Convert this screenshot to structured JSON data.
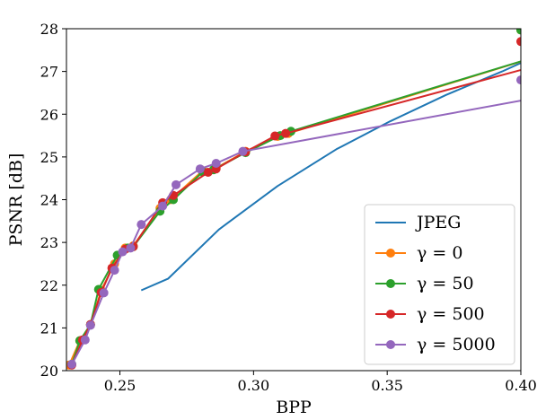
{
  "chart_data": {
    "type": "line",
    "xlabel": "BPP",
    "ylabel": "PSNR [dB]",
    "xlim": [
      0.23,
      0.4
    ],
    "ylim": [
      20,
      28
    ],
    "xticks": [
      0.25,
      0.3,
      0.35,
      0.4
    ],
    "xtick_labels": [
      "0.25",
      "0.30",
      "0.35",
      "0.40"
    ],
    "yticks": [
      20,
      21,
      22,
      23,
      24,
      25,
      26,
      27,
      28
    ],
    "ytick_labels": [
      "20",
      "21",
      "22",
      "23",
      "24",
      "25",
      "26",
      "27",
      "28"
    ],
    "grid": false,
    "legend_position": "lower-right",
    "series": [
      {
        "name": "JPEG",
        "color": "#1f77b4",
        "markers": false,
        "x": [
          0.258,
          0.268,
          0.287,
          0.309,
          0.331,
          0.351,
          0.372,
          0.393,
          0.4
        ],
        "y": [
          21.88,
          22.15,
          23.3,
          24.32,
          25.18,
          25.83,
          26.45,
          27.0,
          27.2
        ]
      },
      {
        "name": "γ = 0",
        "color": "#ff7f0e",
        "markers": true,
        "x": [
          0.231,
          0.235,
          0.239,
          0.243,
          0.248,
          0.252,
          0.255,
          0.265,
          0.269,
          0.281,
          0.286,
          0.297,
          0.309,
          0.313,
          0.42,
          0.4
        ],
        "y": [
          20.13,
          20.7,
          21.07,
          21.88,
          22.5,
          22.87,
          22.92,
          23.8,
          24.0,
          24.68,
          24.74,
          25.13,
          25.48,
          25.55,
          27.62,
          27.97
        ]
      },
      {
        "name": "γ = 50",
        "color": "#2ca02c",
        "markers": true,
        "x": [
          0.232,
          0.235,
          0.239,
          0.242,
          0.249,
          0.253,
          0.255,
          0.265,
          0.27,
          0.281,
          0.285,
          0.297,
          0.31,
          0.314,
          0.428,
          0.4
        ],
        "y": [
          20.15,
          20.7,
          21.08,
          21.9,
          22.7,
          22.87,
          22.9,
          23.73,
          24.0,
          24.65,
          24.7,
          25.1,
          25.5,
          25.6,
          27.77,
          27.97
        ]
      },
      {
        "name": "γ = 500",
        "color": "#d62728",
        "markers": true,
        "x": [
          0.232,
          0.236,
          0.239,
          0.243,
          0.247,
          0.252,
          0.255,
          0.266,
          0.27,
          0.283,
          0.286,
          0.297,
          0.308,
          0.312,
          0.424,
          0.4
        ],
        "y": [
          20.13,
          20.72,
          21.08,
          21.83,
          22.4,
          22.84,
          22.9,
          23.93,
          24.1,
          24.64,
          24.72,
          25.12,
          25.49,
          25.55,
          27.44,
          27.7
        ]
      },
      {
        "name": "γ = 5000",
        "color": "#9467bd",
        "markers": true,
        "x": [
          0.232,
          0.237,
          0.239,
          0.244,
          0.248,
          0.251,
          0.254,
          0.258,
          0.266,
          0.271,
          0.28,
          0.286,
          0.296,
          0.409,
          0.4
        ],
        "y": [
          20.15,
          20.72,
          21.06,
          21.82,
          22.35,
          22.78,
          22.87,
          23.42,
          23.85,
          24.35,
          24.72,
          24.85,
          25.13,
          26.42,
          26.8
        ]
      }
    ]
  }
}
